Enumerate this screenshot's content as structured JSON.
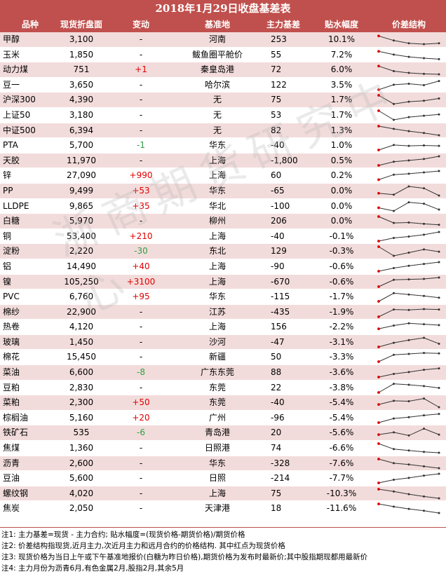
{
  "title": "2018年1月29日收盘基差表",
  "headers": [
    "品种",
    "现货折盘面",
    "变动",
    "基准地",
    "主力基差",
    "贴水幅度",
    "价差结构"
  ],
  "rows": [
    {
      "name": "甲醇",
      "price": "3,100",
      "change": "-",
      "base": "河南",
      "basis": "253",
      "pct": "10.1%",
      "spark": [
        0.9,
        0.4,
        0.1,
        0.0,
        0.1
      ]
    },
    {
      "name": "玉米",
      "price": "1,850",
      "change": "-",
      "base": "鲅鱼圈平舱价",
      "basis": "55",
      "pct": "7.2%",
      "spark": [
        0.9,
        0.55,
        0.3,
        0.15,
        0.05
      ]
    },
    {
      "name": "动力煤",
      "price": "751",
      "change": "+1",
      "base": "秦皇岛港",
      "basis": "72",
      "pct": "6.0%",
      "spark": [
        0.9,
        0.35,
        0.15,
        0.05,
        0.0
      ]
    },
    {
      "name": "豆一",
      "price": "3,650",
      "change": "-",
      "base": "哈尔滨",
      "basis": "122",
      "pct": "3.5%",
      "spark": [
        0.0,
        0.55,
        0.65,
        0.5,
        0.95
      ]
    },
    {
      "name": "沪深300",
      "price": "4,390",
      "change": "-",
      "base": "无",
      "basis": "75",
      "pct": "1.7%",
      "spark": [
        1.0,
        0.05,
        0.3,
        0.4,
        0.65
      ]
    },
    {
      "name": "上证50",
      "price": "3,180",
      "change": "-",
      "base": "无",
      "basis": "53",
      "pct": "1.7%",
      "spark": [
        1.0,
        0.0,
        0.3,
        0.45,
        0.6
      ]
    },
    {
      "name": "中证500",
      "price": "6,394",
      "change": "-",
      "base": "无",
      "basis": "82",
      "pct": "1.3%",
      "spark": [
        1.0,
        0.7,
        0.45,
        0.25,
        0.0
      ]
    },
    {
      "name": "PTA",
      "price": "5,700",
      "change": "-1",
      "base": "华东",
      "basis": "-40",
      "pct": "1.0%",
      "spark": [
        0.0,
        0.55,
        0.45,
        0.5,
        0.45
      ]
    },
    {
      "name": "天胶",
      "price": "11,970",
      "change": "-",
      "base": "上海",
      "basis": "-1,800",
      "pct": "0.5%",
      "spark": [
        0.0,
        0.4,
        0.55,
        0.7,
        1.0
      ]
    },
    {
      "name": "锌",
      "price": "27,090",
      "change": "+990",
      "base": "上海",
      "basis": "60",
      "pct": "0.2%",
      "spark": [
        0.05,
        0.6,
        0.7,
        0.85,
        1.0
      ]
    },
    {
      "name": "PP",
      "price": "9,499",
      "change": "+53",
      "base": "华东",
      "basis": "-65",
      "pct": "0.0%",
      "spark": [
        0.25,
        0.1,
        1.0,
        0.8,
        0.0
      ]
    },
    {
      "name": "LLDPE",
      "price": "9,865",
      "change": "+35",
      "base": "华北",
      "basis": "-100",
      "pct": "0.0%",
      "spark": [
        0.35,
        0.0,
        0.95,
        0.8,
        0.15
      ]
    },
    {
      "name": "白糖",
      "price": "5,970",
      "change": "-",
      "base": "柳州",
      "basis": "206",
      "pct": "0.0%",
      "spark": [
        1.0,
        0.3,
        0.35,
        0.2,
        0.1
      ]
    },
    {
      "name": "铜",
      "price": "53,400",
      "change": "+210",
      "base": "上海",
      "basis": "-40",
      "pct": "-0.1%",
      "spark": [
        0.0,
        0.35,
        0.5,
        0.7,
        1.0
      ]
    },
    {
      "name": "淀粉",
      "price": "2,220",
      "change": "-30",
      "base": "东北",
      "basis": "129",
      "pct": "-0.3%",
      "spark": [
        1.0,
        0.0,
        0.35,
        0.7,
        0.45
      ]
    },
    {
      "name": "铝",
      "price": "14,490",
      "change": "+40",
      "base": "上海",
      "basis": "-90",
      "pct": "-0.6%",
      "spark": [
        0.0,
        0.35,
        0.6,
        0.8,
        1.0
      ]
    },
    {
      "name": "镍",
      "price": "105,250",
      "change": "+3100",
      "base": "上海",
      "basis": "-670",
      "pct": "-0.6%",
      "spark": [
        0.0,
        0.75,
        0.8,
        0.85,
        1.0
      ]
    },
    {
      "name": "PVC",
      "price": "6,760",
      "change": "+95",
      "base": "华东",
      "basis": "-115",
      "pct": "-1.7%",
      "spark": [
        0.0,
        0.9,
        0.75,
        0.6,
        0.4
      ]
    },
    {
      "name": "棉纱",
      "price": "22,900",
      "change": "-",
      "base": "江苏",
      "basis": "-435",
      "pct": "-1.9%",
      "spark": [
        0.0,
        0.8,
        0.75,
        0.85,
        0.8
      ]
    },
    {
      "name": "热卷",
      "price": "4,120",
      "change": "-",
      "base": "上海",
      "basis": "156",
      "pct": "-2.2%",
      "spark": [
        0.3,
        0.65,
        0.9,
        0.8,
        0.7
      ]
    },
    {
      "name": "玻璃",
      "price": "1,450",
      "change": "-",
      "base": "沙河",
      "basis": "-47",
      "pct": "-3.1%",
      "spark": [
        0.0,
        0.45,
        0.75,
        1.0,
        0.35
      ]
    },
    {
      "name": "棉花",
      "price": "15,450",
      "change": "-",
      "base": "新疆",
      "basis": "50",
      "pct": "-3.3%",
      "spark": [
        0.0,
        0.75,
        0.85,
        0.95,
        0.9
      ]
    },
    {
      "name": "菜油",
      "price": "6,600",
      "change": "-8",
      "base": "广东东莞",
      "basis": "88",
      "pct": "-3.6%",
      "spark": [
        0.0,
        0.35,
        0.55,
        0.8,
        0.95
      ]
    },
    {
      "name": "豆粕",
      "price": "2,830",
      "change": "-",
      "base": "东莞",
      "basis": "22",
      "pct": "-3.8%",
      "spark": [
        0.0,
        0.95,
        0.85,
        0.7,
        0.5
      ]
    },
    {
      "name": "菜粕",
      "price": "2,300",
      "change": "+50",
      "base": "东莞",
      "basis": "-40",
      "pct": "-5.4%",
      "spark": [
        0.3,
        0.7,
        0.65,
        0.95,
        0.0
      ]
    },
    {
      "name": "棕榈油",
      "price": "5,160",
      "change": "+20",
      "base": "广州",
      "basis": "-96",
      "pct": "-5.4%",
      "spark": [
        0.0,
        0.45,
        0.6,
        0.8,
        0.95
      ]
    },
    {
      "name": "铁矿石",
      "price": "535",
      "change": "-6",
      "base": "青岛港",
      "basis": "20",
      "pct": "-5.6%",
      "spark": [
        0.3,
        0.55,
        0.2,
        0.95,
        0.3
      ]
    },
    {
      "name": "焦煤",
      "price": "1,360",
      "change": "-",
      "base": "日照港",
      "basis": "74",
      "pct": "-6.6%",
      "spark": [
        1.0,
        0.4,
        0.25,
        0.1,
        0.0
      ]
    },
    {
      "name": "沥青",
      "price": "2,600",
      "change": "-",
      "base": "华东",
      "basis": "-328",
      "pct": "-7.6%",
      "spark": [
        1.0,
        0.55,
        0.4,
        0.2,
        0.0
      ]
    },
    {
      "name": "豆油",
      "price": "5,600",
      "change": "-",
      "base": "日照",
      "basis": "-214",
      "pct": "-7.7%",
      "spark": [
        0.0,
        0.35,
        0.55,
        0.8,
        1.0
      ]
    },
    {
      "name": "螺纹钢",
      "price": "4,020",
      "change": "-",
      "base": "上海",
      "basis": "75",
      "pct": "-10.3%",
      "spark": [
        1.0,
        0.75,
        0.45,
        0.2,
        0.0
      ]
    },
    {
      "name": "焦炭",
      "price": "2,050",
      "change": "-",
      "base": "天津港",
      "basis": "18",
      "pct": "-11.6%",
      "spark": [
        1.0,
        0.7,
        0.45,
        0.25,
        0.0
      ]
    }
  ],
  "notes": [
    "注1: 主力基差=现货 - 主力合约; 贴水幅度=(现货价格-期货价格)/期货价格",
    "注2: 价差结构指现货,近月主力,次近月主力和远月合约的价格结构.  其中红点为现货价格",
    "注3: 现货价格为当日上午或下午基准地报价(白糖为昨日价格),期货价格为发布时最新价;其中股指期现都用最新价",
    "注4: 主力月份为沥青6月,有色金属2月,股指2月,其余5月"
  ],
  "watermark": "浙商期货研究中心",
  "colors": {
    "header_bg": "#c0504d",
    "stripe": "#f2dcdb",
    "positive": "#e00000",
    "negative": "#2ea043",
    "spark_line": "#333333",
    "spot_dot": "#e00000"
  }
}
